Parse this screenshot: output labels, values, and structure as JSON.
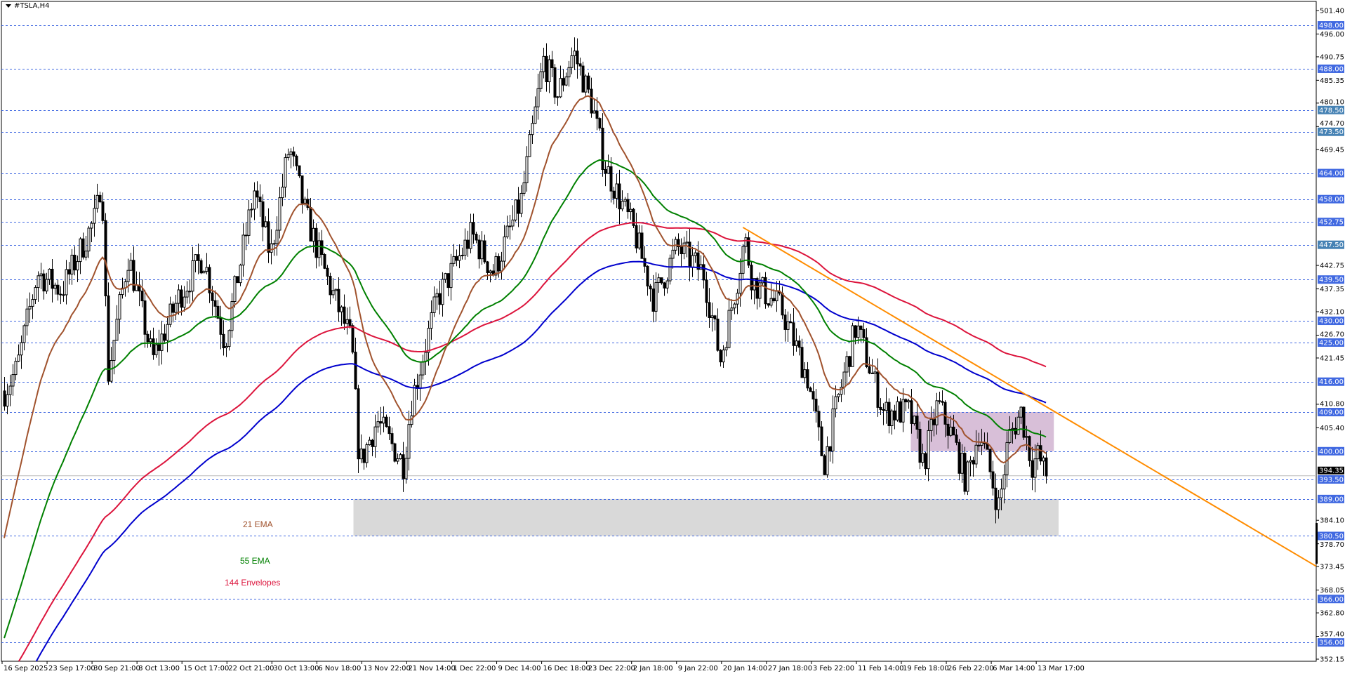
{
  "window": {
    "title": "#TSLA,H4"
  },
  "chart_data": {
    "type": "candlestick",
    "symbol": "#TSLA",
    "timeframe": "H4",
    "ylim": [
      352.15,
      501.4
    ],
    "y_tick_labels": [
      "501.40",
      "496.00",
      "490.75",
      "485.35",
      "480.10",
      "474.70",
      "469.45",
      "442.75",
      "437.35",
      "432.10",
      "426.70",
      "421.45",
      "410.80",
      "405.40",
      "384.10",
      "378.70",
      "373.45",
      "368.05",
      "362.80",
      "357.40",
      "352.15"
    ],
    "x_tick_labels": [
      "16 Sep 2025",
      "23 Sep 17:00",
      "30 Sep 21:00",
      "8 Oct 13:00",
      "15 Oct 17:00",
      "22 Oct 21:00",
      "30 Oct 13:00",
      "6 Nov 18:00",
      "13 Nov 22:00",
      "21 Nov 14:00",
      "1 Dec 22:00",
      "9 Dec 14:00",
      "16 Dec 18:00",
      "23 Dec 22:00",
      "2 Jan 18:00",
      "9 Jan 22:00",
      "20 Jan 14:00",
      "27 Jan 18:00",
      "3 Feb 22:00",
      "11 Feb 14:00",
      "19 Feb 18:00",
      "26 Feb 22:00",
      "6 Mar 14:00",
      "13 Mar 17:00"
    ],
    "current_price": "394.35",
    "horizontal_levels": [
      {
        "price": 498.0,
        "label": "498.00",
        "color": "#4169E1"
      },
      {
        "price": 488.0,
        "label": "488.00",
        "color": "#4169E1"
      },
      {
        "price": 478.5,
        "label": "478.50",
        "color": "#4682B4"
      },
      {
        "price": 473.5,
        "label": "473.50",
        "color": "#4682B4"
      },
      {
        "price": 464.0,
        "label": "464.00",
        "color": "#4169E1"
      },
      {
        "price": 458.0,
        "label": "458.00",
        "color": "#4169E1"
      },
      {
        "price": 452.75,
        "label": "452.75",
        "color": "#4169E1"
      },
      {
        "price": 447.5,
        "label": "447.50",
        "color": "#4682B4"
      },
      {
        "price": 439.5,
        "label": "439.50",
        "color": "#4169E1"
      },
      {
        "price": 430.0,
        "label": "430.00",
        "color": "#4169E1"
      },
      {
        "price": 425.0,
        "label": "425.00",
        "color": "#4169E1"
      },
      {
        "price": 416.0,
        "label": "416.00",
        "color": "#4169E1"
      },
      {
        "price": 409.0,
        "label": "409.00",
        "color": "#4169E1"
      },
      {
        "price": 400.0,
        "label": "400.00",
        "color": "#4169E1"
      },
      {
        "price": 393.5,
        "label": "393.50",
        "color": "#4169E1"
      },
      {
        "price": 389.0,
        "label": "389.00",
        "color": "#4169E1"
      },
      {
        "price": 380.5,
        "label": "380.50",
        "color": "#4169E1"
      },
      {
        "price": 366.0,
        "label": "366.00",
        "color": "#4169E1"
      },
      {
        "price": 356.0,
        "label": "356.00",
        "color": "#4169E1"
      }
    ],
    "zones": [
      {
        "from": "12 Nov 14:00",
        "to": "17 Mar 06:00",
        "price_high": 389.0,
        "price_low": 380.5,
        "color": "#D9D9D9"
      },
      {
        "from": "21 Feb 06:00",
        "to": "16 Mar 12:00",
        "price_high": 409.0,
        "price_low": 400.0,
        "color": "#D8BFD8"
      }
    ],
    "trendline": {
      "color": "#FF8C00",
      "ray": true,
      "points": [
        {
          "date": "24 Jan 00:00",
          "price": 451.5
        },
        {
          "date": "11 Mar 12:00",
          "price": 413.5
        }
      ]
    },
    "indicators": [
      {
        "name": "21 EMA",
        "period": 21,
        "color": "#A0522D"
      },
      {
        "name": "55 EMA",
        "period": 55,
        "color": "#008000"
      },
      {
        "name": "144 Envelopes",
        "period": 144,
        "deviation_pct": 1.0,
        "upper_color": "#DC143C",
        "lower_color": "#0000CD"
      }
    ],
    "approx_close_path": [
      {
        "date": "16 Sep 00:00",
        "close": 413
      },
      {
        "date": "18 Sep 12:00",
        "close": 419
      },
      {
        "date": "22 Sep 00:00",
        "close": 441
      },
      {
        "date": "26 Sep 00:00",
        "close": 437
      },
      {
        "date": "1 Oct 12:00",
        "close": 454
      },
      {
        "date": "2 Oct 12:00",
        "close": 464
      },
      {
        "date": "3 Oct 12:00",
        "close": 417
      },
      {
        "date": "7 Oct 00:00",
        "close": 445
      },
      {
        "date": "11 Oct 00:00",
        "close": 421
      },
      {
        "date": "15 Oct 00:00",
        "close": 435
      },
      {
        "date": "19 Oct 00:00",
        "close": 445
      },
      {
        "date": "22 Oct 12:00",
        "close": 425
      },
      {
        "date": "27 Oct 12:00",
        "close": 460
      },
      {
        "date": "30 Oct 06:00",
        "close": 445
      },
      {
        "date": "2 Nov 06:00",
        "close": 470
      },
      {
        "date": "5 Nov 00:00",
        "close": 454
      },
      {
        "date": "8 Nov 12:00",
        "close": 439
      },
      {
        "date": "12 Nov 06:00",
        "close": 425
      },
      {
        "date": "13 Nov 12:00",
        "close": 397
      },
      {
        "date": "16 Nov 12:00",
        "close": 407
      },
      {
        "date": "21 Nov 00:00",
        "close": 397
      },
      {
        "date": "22 Nov 12:00",
        "close": 411
      },
      {
        "date": "28 Nov 12:00",
        "close": 435
      },
      {
        "date": "5 Dec 06:00",
        "close": 450
      },
      {
        "date": "9 Dec 00:00",
        "close": 441
      },
      {
        "date": "13 Dec 12:00",
        "close": 458
      },
      {
        "date": "17 Dec 00:00",
        "close": 490
      },
      {
        "date": "19 Dec 06:00",
        "close": 482
      },
      {
        "date": "21 Dec 18:00",
        "close": 492
      },
      {
        "date": "25 Dec 00:00",
        "close": 480
      },
      {
        "date": "27 Dec 18:00",
        "close": 466
      },
      {
        "date": "3 Jan 06:00",
        "close": 450
      },
      {
        "date": "6 Jan 06:00",
        "close": 435
      },
      {
        "date": "10 Jan 00:00",
        "close": 447
      },
      {
        "date": "16 Jan 06:00",
        "close": 441
      },
      {
        "date": "20 Jan 06:00",
        "close": 421
      },
      {
        "date": "23 Jan 00:00",
        "close": 439
      },
      {
        "date": "24 Jan 06:00",
        "close": 449
      },
      {
        "date": "25 Jan 12:00",
        "close": 439
      },
      {
        "date": "30 Jan 00:00",
        "close": 433
      },
      {
        "date": "3 Feb 06:00",
        "close": 417
      },
      {
        "date": "6 Feb 00:00",
        "close": 397
      },
      {
        "date": "8 Feb 06:00",
        "close": 411
      },
      {
        "date": "11 Feb 12:00",
        "close": 429
      },
      {
        "date": "16 Feb 12:00",
        "close": 409
      },
      {
        "date": "21 Feb 00:00",
        "close": 409
      },
      {
        "date": "23 Feb 06:00",
        "close": 397
      },
      {
        "date": "25 Feb 12:00",
        "close": 411
      },
      {
        "date": "28 Feb 00:00",
        "close": 403
      },
      {
        "date": "2 Mar 06:00",
        "close": 393
      },
      {
        "date": "4 Mar 12:00",
        "close": 405
      },
      {
        "date": "7 Mar 18:00",
        "close": 387
      },
      {
        "date": "9 Mar 06:00",
        "close": 403
      },
      {
        "date": "11 Mar 06:00",
        "close": 409
      },
      {
        "date": "13 Mar 00:00",
        "close": 397
      },
      {
        "date": "14 Mar 00:00",
        "close": 399
      },
      {
        "date": "15 Mar 06:00",
        "close": 394.3
      }
    ]
  }
}
